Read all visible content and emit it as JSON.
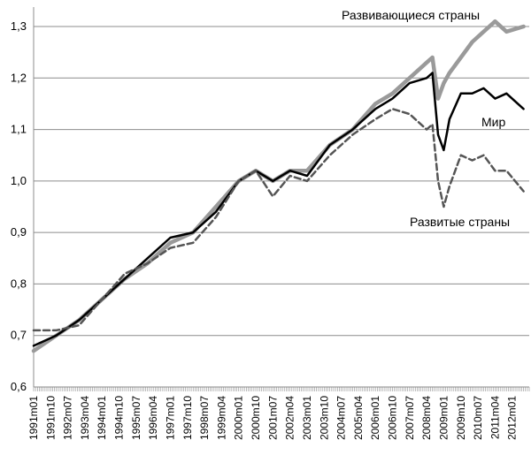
{
  "chart_data": {
    "type": "line",
    "title": "",
    "xlabel": "",
    "ylabel": "",
    "ylim": [
      0.6,
      1.3
    ],
    "yticks": [
      "0,6",
      "0,7",
      "0,8",
      "0,9",
      "1,0",
      "1,1",
      "1,2",
      "1,3"
    ],
    "grid": "horizontal",
    "x_tick_labels": [
      "1991m01",
      "1991m10",
      "1992m07",
      "1993m04",
      "1994m01",
      "1994m10",
      "1995m07",
      "1996m04",
      "1997m01",
      "1997m10",
      "1998m07",
      "1999m04",
      "2000m01",
      "2000m10",
      "2001m07",
      "2002m04",
      "2003m01",
      "2003m10",
      "2004m07",
      "2005m04",
      "2006m01",
      "2006m10",
      "2007m07",
      "2008m04",
      "2009m01",
      "2009m10",
      "2010m07",
      "2011m04",
      "2012m01"
    ],
    "series": [
      {
        "name": "Развивающиеся страны",
        "color": "#9a9a9a",
        "style": "solid-thick",
        "points": [
          [
            "1991m01",
            0.67
          ],
          [
            "1992m01",
            0.7
          ],
          [
            "1993m01",
            0.73
          ],
          [
            "1994m01",
            0.77
          ],
          [
            "1995m01",
            0.81
          ],
          [
            "1996m01",
            0.84
          ],
          [
            "1997m01",
            0.88
          ],
          [
            "1998m01",
            0.9
          ],
          [
            "1999m01",
            0.95
          ],
          [
            "2000m01",
            1.0
          ],
          [
            "2000m10",
            1.02
          ],
          [
            "2001m07",
            1.0
          ],
          [
            "2002m04",
            1.02
          ],
          [
            "2003m01",
            1.02
          ],
          [
            "2004m01",
            1.07
          ],
          [
            "2005m01",
            1.1
          ],
          [
            "2006m01",
            1.15
          ],
          [
            "2006m10",
            1.17
          ],
          [
            "2007m07",
            1.2
          ],
          [
            "2008m04",
            1.23
          ],
          [
            "2008m07",
            1.24
          ],
          [
            "2008m10",
            1.16
          ],
          [
            "2009m01",
            1.19
          ],
          [
            "2009m04",
            1.21
          ],
          [
            "2009m10",
            1.24
          ],
          [
            "2010m04",
            1.27
          ],
          [
            "2010m10",
            1.29
          ],
          [
            "2011m04",
            1.31
          ],
          [
            "2011m10",
            1.29
          ],
          [
            "2012m07",
            1.3
          ]
        ]
      },
      {
        "name": "Мир",
        "color": "#000000",
        "style": "solid",
        "points": [
          [
            "1991m01",
            0.68
          ],
          [
            "1992m01",
            0.7
          ],
          [
            "1993m01",
            0.73
          ],
          [
            "1994m01",
            0.77
          ],
          [
            "1995m01",
            0.81
          ],
          [
            "1996m01",
            0.85
          ],
          [
            "1997m01",
            0.89
          ],
          [
            "1998m01",
            0.9
          ],
          [
            "1999m01",
            0.94
          ],
          [
            "2000m01",
            1.0
          ],
          [
            "2000m10",
            1.02
          ],
          [
            "2001m07",
            1.0
          ],
          [
            "2002m04",
            1.02
          ],
          [
            "2003m01",
            1.01
          ],
          [
            "2004m01",
            1.07
          ],
          [
            "2005m01",
            1.1
          ],
          [
            "2006m01",
            1.14
          ],
          [
            "2006m10",
            1.16
          ],
          [
            "2007m07",
            1.19
          ],
          [
            "2008m04",
            1.2
          ],
          [
            "2008m07",
            1.21
          ],
          [
            "2008m10",
            1.09
          ],
          [
            "2009m01",
            1.06
          ],
          [
            "2009m04",
            1.12
          ],
          [
            "2009m10",
            1.17
          ],
          [
            "2010m04",
            1.17
          ],
          [
            "2010m10",
            1.18
          ],
          [
            "2011m04",
            1.16
          ],
          [
            "2011m10",
            1.17
          ],
          [
            "2012m07",
            1.14
          ]
        ]
      },
      {
        "name": "Развитые страны",
        "color": "#555555",
        "style": "dashed",
        "points": [
          [
            "1991m01",
            0.71
          ],
          [
            "1992m01",
            0.71
          ],
          [
            "1993m01",
            0.72
          ],
          [
            "1994m01",
            0.77
          ],
          [
            "1995m01",
            0.82
          ],
          [
            "1996m01",
            0.84
          ],
          [
            "1997m01",
            0.87
          ],
          [
            "1998m01",
            0.88
          ],
          [
            "1999m01",
            0.93
          ],
          [
            "2000m01",
            1.0
          ],
          [
            "2000m10",
            1.02
          ],
          [
            "2001m07",
            0.97
          ],
          [
            "2002m04",
            1.01
          ],
          [
            "2003m01",
            1.0
          ],
          [
            "2004m01",
            1.05
          ],
          [
            "2005m01",
            1.09
          ],
          [
            "2006m01",
            1.12
          ],
          [
            "2006m10",
            1.14
          ],
          [
            "2007m07",
            1.13
          ],
          [
            "2008m04",
            1.1
          ],
          [
            "2008m07",
            1.11
          ],
          [
            "2008m10",
            1.0
          ],
          [
            "2009m01",
            0.95
          ],
          [
            "2009m04",
            0.99
          ],
          [
            "2009m10",
            1.05
          ],
          [
            "2010m04",
            1.04
          ],
          [
            "2010m10",
            1.05
          ],
          [
            "2011m04",
            1.02
          ],
          [
            "2011m10",
            1.02
          ],
          [
            "2012m07",
            0.98
          ]
        ]
      }
    ]
  }
}
